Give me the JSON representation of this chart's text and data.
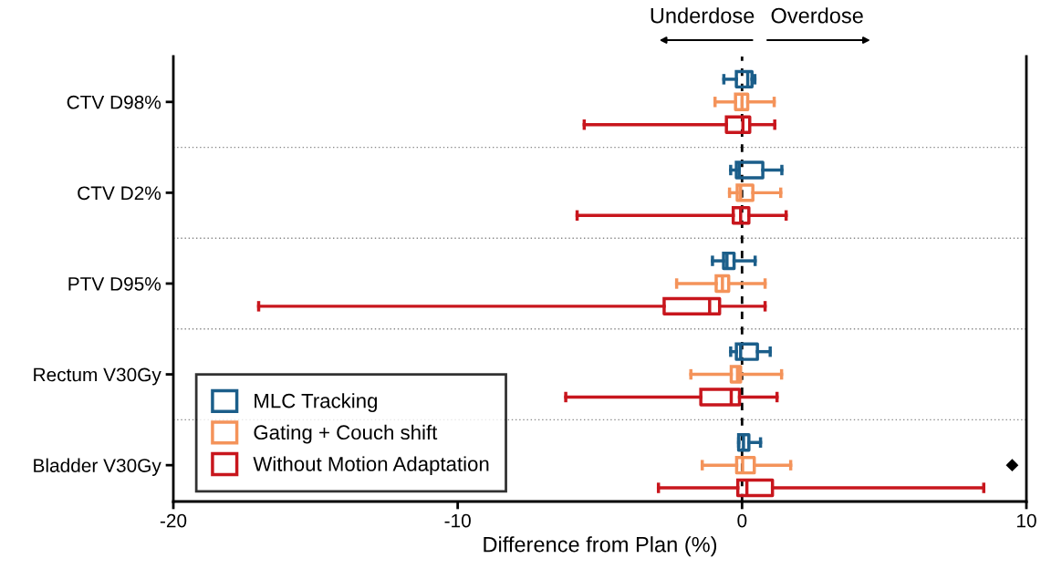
{
  "chart_data": {
    "type": "box",
    "orientation": "horizontal",
    "xlabel": "Difference from Plan (%)",
    "categories": [
      "CTV D98%",
      "CTV D2%",
      "PTV D95%",
      "Rectum V30Gy",
      "Bladder V30Gy"
    ],
    "xlim": [
      -20,
      10
    ],
    "xticks": [
      -20,
      -10,
      0,
      10
    ],
    "grid": "y",
    "legend": "bottom left",
    "annotations": [
      "Underdose",
      "Overdose"
    ],
    "ref_lines": [
      {
        "axis": "x",
        "value": 0,
        "color": "#000000",
        "line_style": "dashed"
      }
    ],
    "series": [
      {
        "name": "MLC Tracking",
        "color": "#1b5e8a",
        "boxes": [
          {
            "low": -0.64,
            "q1": -0.2,
            "median": 0.2,
            "q3": 0.35,
            "high": 0.45
          },
          {
            "low": -0.4,
            "q1": -0.2,
            "median": -0.1,
            "q3": 0.73,
            "high": 1.4
          },
          {
            "low": -1.04,
            "q1": -0.65,
            "median": -0.53,
            "q3": -0.28,
            "high": 0.46
          },
          {
            "low": -0.4,
            "q1": -0.2,
            "median": -0.05,
            "q3": 0.54,
            "high": 0.99
          },
          {
            "low": -0.12,
            "q1": -0.12,
            "median": 0.05,
            "q3": 0.24,
            "high": 0.65
          }
        ]
      },
      {
        "name": "Gating + Couch shift",
        "color": "#f4935a",
        "boxes": [
          {
            "low": -0.95,
            "q1": -0.23,
            "median": 0.0,
            "q3": 0.2,
            "high": 1.13
          },
          {
            "low": -0.44,
            "q1": -0.17,
            "median": -0.05,
            "q3": 0.38,
            "high": 1.36
          },
          {
            "low": -2.3,
            "q1": -0.91,
            "median": -0.69,
            "q3": -0.47,
            "high": 0.81
          },
          {
            "low": -1.8,
            "q1": -0.38,
            "median": -0.16,
            "q3": -0.05,
            "high": 1.39
          },
          {
            "low": -1.4,
            "q1": -0.19,
            "median": 0.02,
            "q3": 0.43,
            "high": 1.71,
            "outliers": [
              9.5
            ]
          }
        ]
      },
      {
        "name": "Without Motion Adaptation",
        "color": "#c8161d",
        "boxes": [
          {
            "low": -5.55,
            "q1": -0.55,
            "median": 0.03,
            "q3": 0.27,
            "high": 1.15
          },
          {
            "low": -5.8,
            "q1": -0.31,
            "median": -0.05,
            "q3": 0.24,
            "high": 1.55
          },
          {
            "low": -17.0,
            "q1": -2.74,
            "median": -1.14,
            "q3": -0.79,
            "high": 0.81
          },
          {
            "low": -6.2,
            "q1": -1.45,
            "median": -0.38,
            "q3": -0.09,
            "high": 1.23
          },
          {
            "low": -2.94,
            "q1": -0.15,
            "median": 0.17,
            "q3": 1.07,
            "high": 8.5
          }
        ]
      }
    ]
  }
}
